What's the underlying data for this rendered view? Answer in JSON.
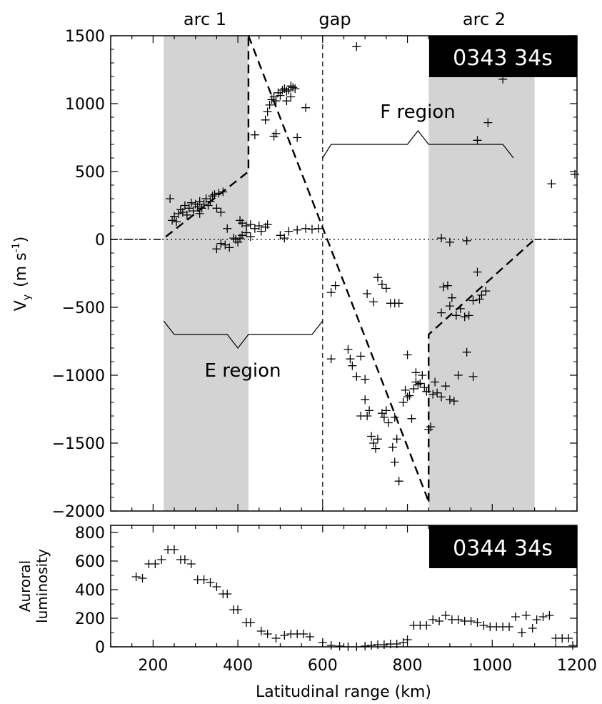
{
  "chart_data": [
    {
      "type": "scatter",
      "panel": "top",
      "ylabel": "V",
      "ylabel_sub": "y",
      "ylabel_units": "(m s",
      "ylabel_units_sup": "-1",
      "ylabel_units_close": ")",
      "xlim": [
        100,
        1200
      ],
      "ylim": [
        -2000,
        1500
      ],
      "yticks": [
        -2000,
        -1500,
        -1000,
        -500,
        0,
        500,
        1000,
        1500
      ],
      "xticks": [
        200,
        400,
        600,
        800,
        1000,
        1200
      ],
      "time_badge": "0343 34s",
      "region_labels": {
        "arc1": "arc 1",
        "gap": "gap",
        "arc2": "arc 2"
      },
      "shaded_ranges": [
        [
          225,
          425
        ],
        [
          850,
          1100
        ]
      ],
      "gap_boundary_x": 600,
      "annotations": {
        "f_region": "F region",
        "e_region": "E region"
      },
      "f_region_bracket": [
        [
          600,
          600
        ],
        [
          620,
          700
        ],
        [
          800,
          700
        ],
        [
          825,
          800
        ],
        [
          850,
          700
        ],
        [
          1025,
          700
        ],
        [
          1050,
          600
        ]
      ],
      "e_region_bracket": [
        [
          225,
          -600
        ],
        [
          250,
          -700
        ],
        [
          375,
          -700
        ],
        [
          400,
          -800
        ],
        [
          425,
          -700
        ],
        [
          575,
          -700
        ],
        [
          600,
          -600
        ]
      ],
      "model_lines": [
        [
          [
            230,
            20
          ],
          [
            425,
            500
          ],
          [
            425,
            1500
          ]
        ],
        [
          [
            425,
            1500
          ],
          [
            850,
            -1930
          ]
        ],
        [
          [
            850,
            -1930
          ],
          [
            850,
            -700
          ],
          [
            1100,
            0
          ]
        ]
      ],
      "points": [
        [
          240,
          300
        ],
        [
          245,
          140
        ],
        [
          250,
          170
        ],
        [
          255,
          130
        ],
        [
          260,
          190
        ],
        [
          265,
          220
        ],
        [
          270,
          200
        ],
        [
          275,
          250
        ],
        [
          280,
          180
        ],
        [
          285,
          230
        ],
        [
          290,
          270
        ],
        [
          295,
          210
        ],
        [
          300,
          260
        ],
        [
          305,
          240
        ],
        [
          310,
          280
        ],
        [
          315,
          230
        ],
        [
          320,
          260
        ],
        [
          325,
          300
        ],
        [
          330,
          250
        ],
        [
          335,
          280
        ],
        [
          340,
          320
        ],
        [
          345,
          330
        ],
        [
          355,
          340
        ],
        [
          365,
          350
        ],
        [
          360,
          200
        ],
        [
          375,
          80
        ],
        [
          310,
          190
        ],
        [
          350,
          230
        ],
        [
          405,
          140
        ],
        [
          410,
          120
        ],
        [
          420,
          100
        ],
        [
          430,
          110
        ],
        [
          440,
          80
        ],
        [
          450,
          100
        ],
        [
          455,
          60
        ],
        [
          465,
          90
        ],
        [
          470,
          110
        ],
        [
          410,
          30
        ],
        [
          420,
          50
        ],
        [
          430,
          20
        ],
        [
          390,
          10
        ],
        [
          395,
          0
        ],
        [
          400,
          -20
        ],
        [
          405,
          10
        ],
        [
          380,
          -60
        ],
        [
          370,
          -40
        ],
        [
          350,
          -70
        ],
        [
          360,
          -30
        ],
        [
          500,
          30
        ],
        [
          510,
          10
        ],
        [
          520,
          60
        ],
        [
          540,
          70
        ],
        [
          560,
          80
        ],
        [
          575,
          75
        ],
        [
          590,
          80
        ],
        [
          440,
          770
        ],
        [
          465,
          880
        ],
        [
          470,
          940
        ],
        [
          475,
          990
        ],
        [
          480,
          1030
        ],
        [
          485,
          1050
        ],
        [
          490,
          1020
        ],
        [
          495,
          1080
        ],
        [
          500,
          1060
        ],
        [
          505,
          1100
        ],
        [
          510,
          1110
        ],
        [
          515,
          1090
        ],
        [
          520,
          1100
        ],
        [
          525,
          1130
        ],
        [
          530,
          1120
        ],
        [
          535,
          1110
        ],
        [
          525,
          1050
        ],
        [
          515,
          1020
        ],
        [
          490,
          780
        ],
        [
          485,
          760
        ],
        [
          540,
          750
        ],
        [
          560,
          970
        ],
        [
          680,
          1420
        ],
        [
          1025,
          1180
        ],
        [
          965,
          730
        ],
        [
          990,
          860
        ],
        [
          1140,
          410
        ],
        [
          1195,
          480
        ],
        [
          620,
          -390
        ],
        [
          630,
          -340
        ],
        [
          620,
          -880
        ],
        [
          660,
          -810
        ],
        [
          665,
          -880
        ],
        [
          670,
          -930
        ],
        [
          680,
          -1010
        ],
        [
          690,
          -860
        ],
        [
          700,
          -1030
        ],
        [
          705,
          -1300
        ],
        [
          710,
          -1260
        ],
        [
          715,
          -1450
        ],
        [
          720,
          -1500
        ],
        [
          725,
          -1540
        ],
        [
          730,
          -1470
        ],
        [
          740,
          -1280
        ],
        [
          745,
          -1310
        ],
        [
          750,
          -1260
        ],
        [
          755,
          -1350
        ],
        [
          765,
          -1530
        ],
        [
          770,
          -1310
        ],
        [
          775,
          -1470
        ],
        [
          780,
          -1780
        ],
        [
          790,
          -1200
        ],
        [
          795,
          -1110
        ],
        [
          800,
          -1160
        ],
        [
          805,
          -1150
        ],
        [
          810,
          -1320
        ],
        [
          815,
          -1100
        ],
        [
          820,
          -1050
        ],
        [
          825,
          -1070
        ],
        [
          830,
          -1060
        ],
        [
          835,
          -1000
        ],
        [
          840,
          -1090
        ],
        [
          845,
          -1120
        ],
        [
          850,
          -1400
        ],
        [
          855,
          -1380
        ],
        [
          860,
          -1140
        ],
        [
          865,
          -1050
        ],
        [
          870,
          -1130
        ],
        [
          880,
          -1160
        ],
        [
          890,
          -1080
        ],
        [
          900,
          -1180
        ],
        [
          910,
          -1190
        ],
        [
          920,
          -1000
        ],
        [
          940,
          -830
        ],
        [
          955,
          -1010
        ],
        [
          730,
          -280
        ],
        [
          740,
          -330
        ],
        [
          750,
          -360
        ],
        [
          760,
          -470
        ],
        [
          770,
          -470
        ],
        [
          780,
          -470
        ],
        [
          705,
          -400
        ],
        [
          720,
          -460
        ],
        [
          800,
          -850
        ],
        [
          820,
          -980
        ],
        [
          770,
          -1640
        ],
        [
          700,
          -1180
        ],
        [
          690,
          -1300
        ],
        [
          880,
          -540
        ],
        [
          885,
          -350
        ],
        [
          895,
          -340
        ],
        [
          900,
          -490
        ],
        [
          905,
          -430
        ],
        [
          915,
          -560
        ],
        [
          925,
          -510
        ],
        [
          935,
          -570
        ],
        [
          945,
          -560
        ],
        [
          955,
          -450
        ],
        [
          965,
          -240
        ],
        [
          970,
          -440
        ],
        [
          975,
          -410
        ],
        [
          985,
          -380
        ],
        [
          880,
          10
        ],
        [
          900,
          -20
        ],
        [
          940,
          -10
        ]
      ]
    },
    {
      "type": "scatter",
      "panel": "bottom",
      "ylabel": "Auroral",
      "ylabel2": "luminosity",
      "xlabel": "Latitudinal range (km)",
      "xlim": [
        100,
        1200
      ],
      "ylim": [
        0,
        850
      ],
      "yticks": [
        0,
        200,
        400,
        600,
        800
      ],
      "xticks": [
        200,
        400,
        600,
        800,
        1000,
        1200
      ],
      "time_badge": "0344 34s",
      "points": [
        [
          160,
          490
        ],
        [
          175,
          480
        ],
        [
          190,
          580
        ],
        [
          205,
          580
        ],
        [
          220,
          610
        ],
        [
          235,
          680
        ],
        [
          250,
          680
        ],
        [
          265,
          610
        ],
        [
          275,
          610
        ],
        [
          290,
          580
        ],
        [
          305,
          470
        ],
        [
          320,
          470
        ],
        [
          335,
          450
        ],
        [
          350,
          420
        ],
        [
          365,
          370
        ],
        [
          375,
          370
        ],
        [
          390,
          260
        ],
        [
          400,
          260
        ],
        [
          420,
          170
        ],
        [
          430,
          170
        ],
        [
          455,
          110
        ],
        [
          470,
          90
        ],
        [
          490,
          60
        ],
        [
          510,
          80
        ],
        [
          525,
          90
        ],
        [
          540,
          90
        ],
        [
          555,
          90
        ],
        [
          570,
          70
        ],
        [
          600,
          30
        ],
        [
          620,
          10
        ],
        [
          640,
          5
        ],
        [
          660,
          0
        ],
        [
          680,
          0
        ],
        [
          700,
          5
        ],
        [
          715,
          10
        ],
        [
          730,
          15
        ],
        [
          745,
          15
        ],
        [
          760,
          20
        ],
        [
          775,
          20
        ],
        [
          790,
          30
        ],
        [
          800,
          50
        ],
        [
          815,
          150
        ],
        [
          830,
          150
        ],
        [
          845,
          150
        ],
        [
          860,
          190
        ],
        [
          875,
          180
        ],
        [
          890,
          220
        ],
        [
          905,
          190
        ],
        [
          920,
          190
        ],
        [
          935,
          180
        ],
        [
          950,
          180
        ],
        [
          965,
          170
        ],
        [
          980,
          150
        ],
        [
          995,
          140
        ],
        [
          1010,
          140
        ],
        [
          1025,
          140
        ],
        [
          1040,
          140
        ],
        [
          1055,
          210
        ],
        [
          1070,
          100
        ],
        [
          1080,
          220
        ],
        [
          1095,
          130
        ],
        [
          1105,
          190
        ],
        [
          1120,
          210
        ],
        [
          1135,
          220
        ],
        [
          1150,
          60
        ],
        [
          1165,
          60
        ],
        [
          1180,
          60
        ],
        [
          1190,
          10
        ]
      ]
    }
  ]
}
